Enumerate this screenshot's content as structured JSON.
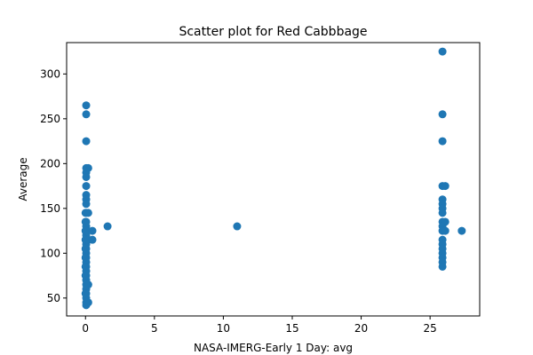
{
  "chart_data": {
    "type": "scatter",
    "title": "Scatter plot for Red Cabbbage",
    "xlabel": "NASA-IMERG-Early 1 Day: avg",
    "ylabel": "Average",
    "xlim": [
      -1.37,
      28.6
    ],
    "ylim": [
      30,
      335
    ],
    "xticks": [
      0,
      5,
      10,
      15,
      20,
      25
    ],
    "yticks": [
      50,
      100,
      150,
      200,
      250,
      300
    ],
    "grid": false,
    "legend": "none",
    "marker_color": "#1f77b4",
    "series": [
      {
        "points": [
          [
            0.05,
            265
          ],
          [
            0.05,
            255
          ],
          [
            0.05,
            225
          ],
          [
            0.05,
            195
          ],
          [
            0.05,
            190
          ],
          [
            0.05,
            185
          ],
          [
            0.05,
            175
          ],
          [
            0.05,
            165
          ],
          [
            0.05,
            160
          ],
          [
            0.05,
            155
          ],
          [
            0.05,
            145
          ],
          [
            0.05,
            135
          ],
          [
            0.05,
            130
          ],
          [
            0.05,
            125
          ],
          [
            0.05,
            120
          ],
          [
            0.05,
            115
          ],
          [
            0.05,
            110
          ],
          [
            0.05,
            105
          ],
          [
            0.05,
            100
          ],
          [
            0.05,
            95
          ],
          [
            0.05,
            90
          ],
          [
            0.05,
            85
          ],
          [
            0.05,
            80
          ],
          [
            0.05,
            75
          ],
          [
            0.05,
            70
          ],
          [
            0.05,
            65
          ],
          [
            0.05,
            60
          ],
          [
            0.05,
            55
          ],
          [
            0.05,
            50
          ],
          [
            0.05,
            45
          ],
          [
            0.05,
            42
          ],
          [
            0.0,
            145
          ],
          [
            0.0,
            135
          ],
          [
            0.0,
            125
          ],
          [
            0.0,
            115
          ],
          [
            0.0,
            105
          ],
          [
            0.0,
            95
          ],
          [
            0.0,
            85
          ],
          [
            0.0,
            75
          ],
          [
            0.0,
            55
          ],
          [
            0.2,
            195
          ],
          [
            0.2,
            145
          ],
          [
            0.2,
            115
          ],
          [
            0.2,
            65
          ],
          [
            0.2,
            45
          ],
          [
            0.5,
            125
          ],
          [
            0.5,
            115
          ],
          [
            1.6,
            130
          ],
          [
            11.0,
            130
          ],
          [
            25.9,
            325
          ],
          [
            25.9,
            255
          ],
          [
            25.9,
            225
          ],
          [
            25.9,
            175
          ],
          [
            25.9,
            160
          ],
          [
            25.9,
            155
          ],
          [
            25.9,
            150
          ],
          [
            25.9,
            145
          ],
          [
            25.9,
            135
          ],
          [
            25.9,
            130
          ],
          [
            25.9,
            125
          ],
          [
            25.9,
            115
          ],
          [
            25.9,
            110
          ],
          [
            25.9,
            105
          ],
          [
            25.9,
            100
          ],
          [
            25.9,
            95
          ],
          [
            25.9,
            90
          ],
          [
            25.9,
            85
          ],
          [
            26.1,
            175
          ],
          [
            26.1,
            135
          ],
          [
            26.1,
            125
          ],
          [
            27.3,
            125
          ]
        ]
      }
    ]
  }
}
